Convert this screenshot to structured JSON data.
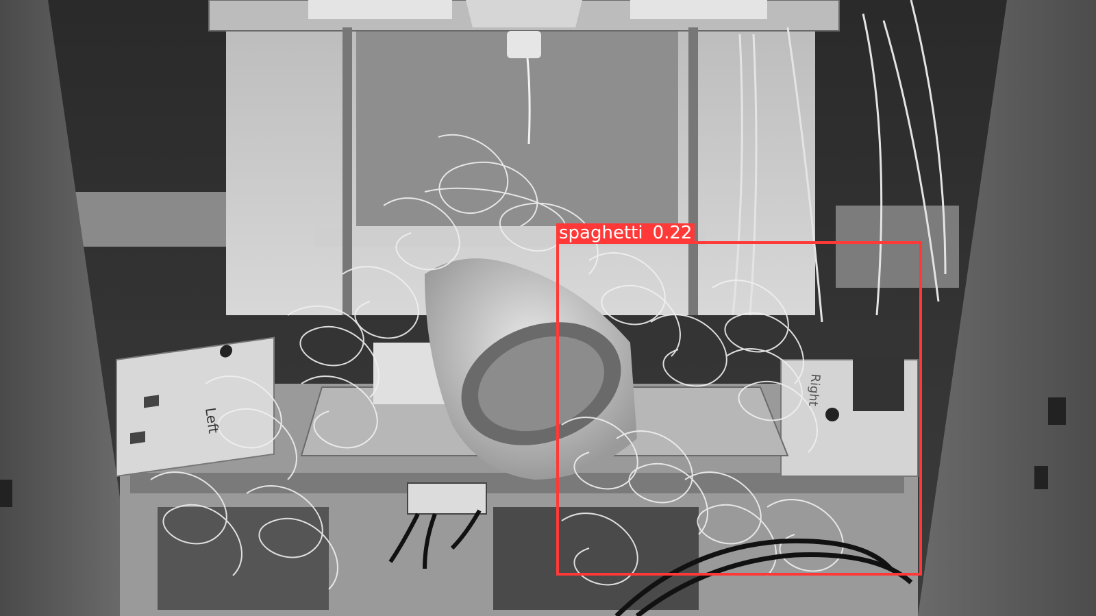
{
  "scene": {
    "description_icon": "3d-printer-photo",
    "panel_labels": {
      "left": "Left",
      "right": "Right"
    }
  },
  "detection": {
    "class_name": "spaghetti",
    "confidence": "0.22",
    "color": "#ff3838"
  }
}
